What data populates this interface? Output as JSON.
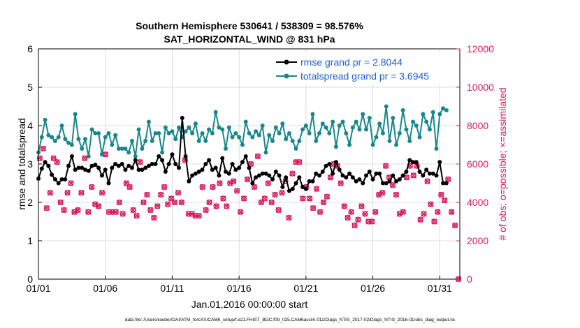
{
  "chart_data": {
    "type": "line",
    "title_line1": "Southern Hemisphere 530641 / 538309 = 98.576%",
    "title_line2": "SAT_HORIZONTAL_WIND @ 831 hPa",
    "xlabel": "Jan.01,2016 00:00:00 start",
    "ylabel_left": "rmse and totalspread",
    "ylabel_right": "# of obs: o=possible; ×=assimilated",
    "footnote": "data file: /Users/raeder/DAI/ATM_forcXX/CAM6_setup/f.e21.FHIST_BGC.f09_025.CAM6assim.011/Diags_NTrS_2017-02/Diags_NTrS_2016-01/obs_diag_output.nc",
    "xlim": [
      0,
      31.5
    ],
    "ylim_left": [
      0,
      6
    ],
    "ylim_right": [
      0,
      12000
    ],
    "x_ticks": [
      {
        "value": 0,
        "label": "01/01"
      },
      {
        "value": 5,
        "label": "01/06"
      },
      {
        "value": 10,
        "label": "01/11"
      },
      {
        "value": 15,
        "label": "01/16"
      },
      {
        "value": 20,
        "label": "01/21"
      },
      {
        "value": 25,
        "label": "01/26"
      },
      {
        "value": 30,
        "label": "01/31"
      }
    ],
    "y_ticks_left": [
      0,
      1,
      2,
      3,
      4,
      5,
      6
    ],
    "y_ticks_right": [
      0,
      2000,
      4000,
      6000,
      8000,
      10000,
      12000
    ],
    "colors": {
      "rmse": "#000000",
      "totalspread": "#17878b",
      "obs": "#d81b60",
      "left_axis": "#000000",
      "right_axis": "#d81b60",
      "legend_text": "#1f5fd6"
    },
    "legend": [
      {
        "series": "rmse",
        "label": "rmse grand pr = 2.8044"
      },
      {
        "series": "totalspread",
        "label": "totalspread grand pr = 3.6945"
      }
    ],
    "time_step_days": 0.25,
    "series": [
      {
        "name": "rmse",
        "values": [
          2.62,
          2.88,
          3.05,
          2.95,
          2.72,
          2.6,
          2.5,
          2.6,
          2.6,
          2.95,
          3.2,
          2.85,
          2.9,
          2.9,
          2.85,
          2.82,
          2.95,
          2.98,
          2.9,
          2.7,
          2.85,
          2.5,
          2.9,
          3.0,
          2.95,
          3.0,
          2.85,
          2.95,
          2.9,
          3.1,
          2.85,
          2.85,
          2.9,
          2.95,
          3.0,
          3.0,
          3.2,
          3.1,
          2.8,
          3.0,
          3.25,
          3.0,
          2.9,
          4.2,
          3.2,
          2.55,
          2.7,
          2.75,
          2.8,
          2.85,
          3.0,
          3.1,
          2.85,
          2.9,
          2.7,
          3.15,
          2.8,
          2.75,
          3.0,
          2.85,
          2.9,
          3.05,
          3.2,
          2.9,
          2.5,
          2.65,
          2.7,
          2.75,
          2.75,
          2.7,
          2.6,
          2.8,
          2.7,
          2.4,
          2.65,
          2.3,
          2.35,
          2.5,
          2.65,
          2.4,
          2.35,
          2.55,
          2.55,
          2.75,
          2.7,
          2.8,
          2.95,
          3.0,
          2.75,
          3.05,
          2.85,
          2.7,
          2.65,
          2.75,
          2.65,
          2.55,
          2.6,
          2.5,
          2.7,
          2.8,
          2.6,
          2.75,
          2.75,
          2.5,
          2.5,
          2.55,
          2.7,
          2.55,
          2.6,
          2.7,
          2.8,
          3.1,
          3.05,
          3.05,
          2.8,
          2.7,
          2.85,
          2.75,
          2.75,
          2.7,
          3.05,
          2.5,
          2.5
        ],
        "note": "6-hourly values, 0.25-day spacing starting 01/01"
      },
      {
        "name": "totalspread",
        "values": [
          3.3,
          3.7,
          4.15,
          3.75,
          3.7,
          3.6,
          3.7,
          4.0,
          3.65,
          3.55,
          3.5,
          4.3,
          3.65,
          3.4,
          3.65,
          3.2,
          3.9,
          3.8,
          3.8,
          3.25,
          3.7,
          3.8,
          3.5,
          3.75,
          3.4,
          3.4,
          3.4,
          3.3,
          3.6,
          3.2,
          3.9,
          3.4,
          3.6,
          4.1,
          3.6,
          3.8,
          3.8,
          3.3,
          3.95,
          3.8,
          3.85,
          3.65,
          3.95,
          3.7,
          3.85,
          3.95,
          3.8,
          4.05,
          3.6,
          3.8,
          3.6,
          3.9,
          3.8,
          4.35,
          3.95,
          3.9,
          3.4,
          3.95,
          3.7,
          3.8,
          3.7,
          3.5,
          4.1,
          3.8,
          3.7,
          3.85,
          3.75,
          4.0,
          3.3,
          3.75,
          3.6,
          3.95,
          3.8,
          4.05,
          3.65,
          3.8,
          3.6,
          3.4,
          3.6,
          3.9,
          4.0,
          3.8,
          4.3,
          3.6,
          3.8,
          4.05,
          3.95,
          3.8,
          4.1,
          3.45,
          4.0,
          4.1,
          3.8,
          3.5,
          3.95,
          4.1,
          3.9,
          4.3,
          3.9,
          4.2,
          3.5,
          3.7,
          4.05,
          3.8,
          4.5,
          3.6,
          4.2,
          3.5,
          3.8,
          4.4,
          3.9,
          3.6,
          4.1,
          4.0,
          3.7,
          4.3,
          4.1,
          3.9,
          4.35,
          3.4,
          4.3,
          4.45,
          4.4
        ],
        "note": "6-hourly values, 0.25-day spacing starting 01/01"
      },
      {
        "name": "obs_possible",
        "axis": "right",
        "values": [
          6300,
          6800,
          3700,
          4500,
          6300,
          6100,
          4000,
          3600,
          4500,
          5000,
          3500,
          3600,
          4500,
          6300,
          3500,
          4800,
          3900,
          3800,
          4500,
          6500,
          3500,
          3500,
          3500,
          4000,
          3400,
          5000,
          4800,
          3600,
          3300,
          6100,
          4000,
          4400,
          3600,
          3200,
          3800,
          4400,
          4800,
          3900,
          4200,
          4000,
          4500,
          4000,
          6200,
          3400,
          3400,
          3300,
          3300,
          4800,
          3600,
          4000,
          4800,
          3800,
          5000,
          4200,
          3800,
          5000,
          5100,
          4600,
          3500,
          4200,
          5200,
          6000,
          4800,
          6400,
          4000,
          4200,
          5000,
          4000,
          4400,
          3600,
          4500,
          5100,
          3200,
          5500,
          6100,
          6100,
          4200,
          4800,
          4200,
          3700,
          4700,
          3500,
          4000,
          4300,
          5300,
          6000,
          5900,
          5000,
          3800,
          3200,
          3500,
          2800,
          3100,
          3800,
          3400,
          3000,
          3000,
          3500,
          4400,
          4500,
          5900,
          5300,
          4900,
          4400,
          3400,
          3500,
          5300,
          5900,
          5400,
          5900,
          3100,
          3400,
          5100,
          3900,
          3000,
          3500,
          4400,
          4100,
          5200,
          3500,
          2800,
          0
        ],
        "note": "daily-ish scatter of obs counts"
      }
    ]
  }
}
